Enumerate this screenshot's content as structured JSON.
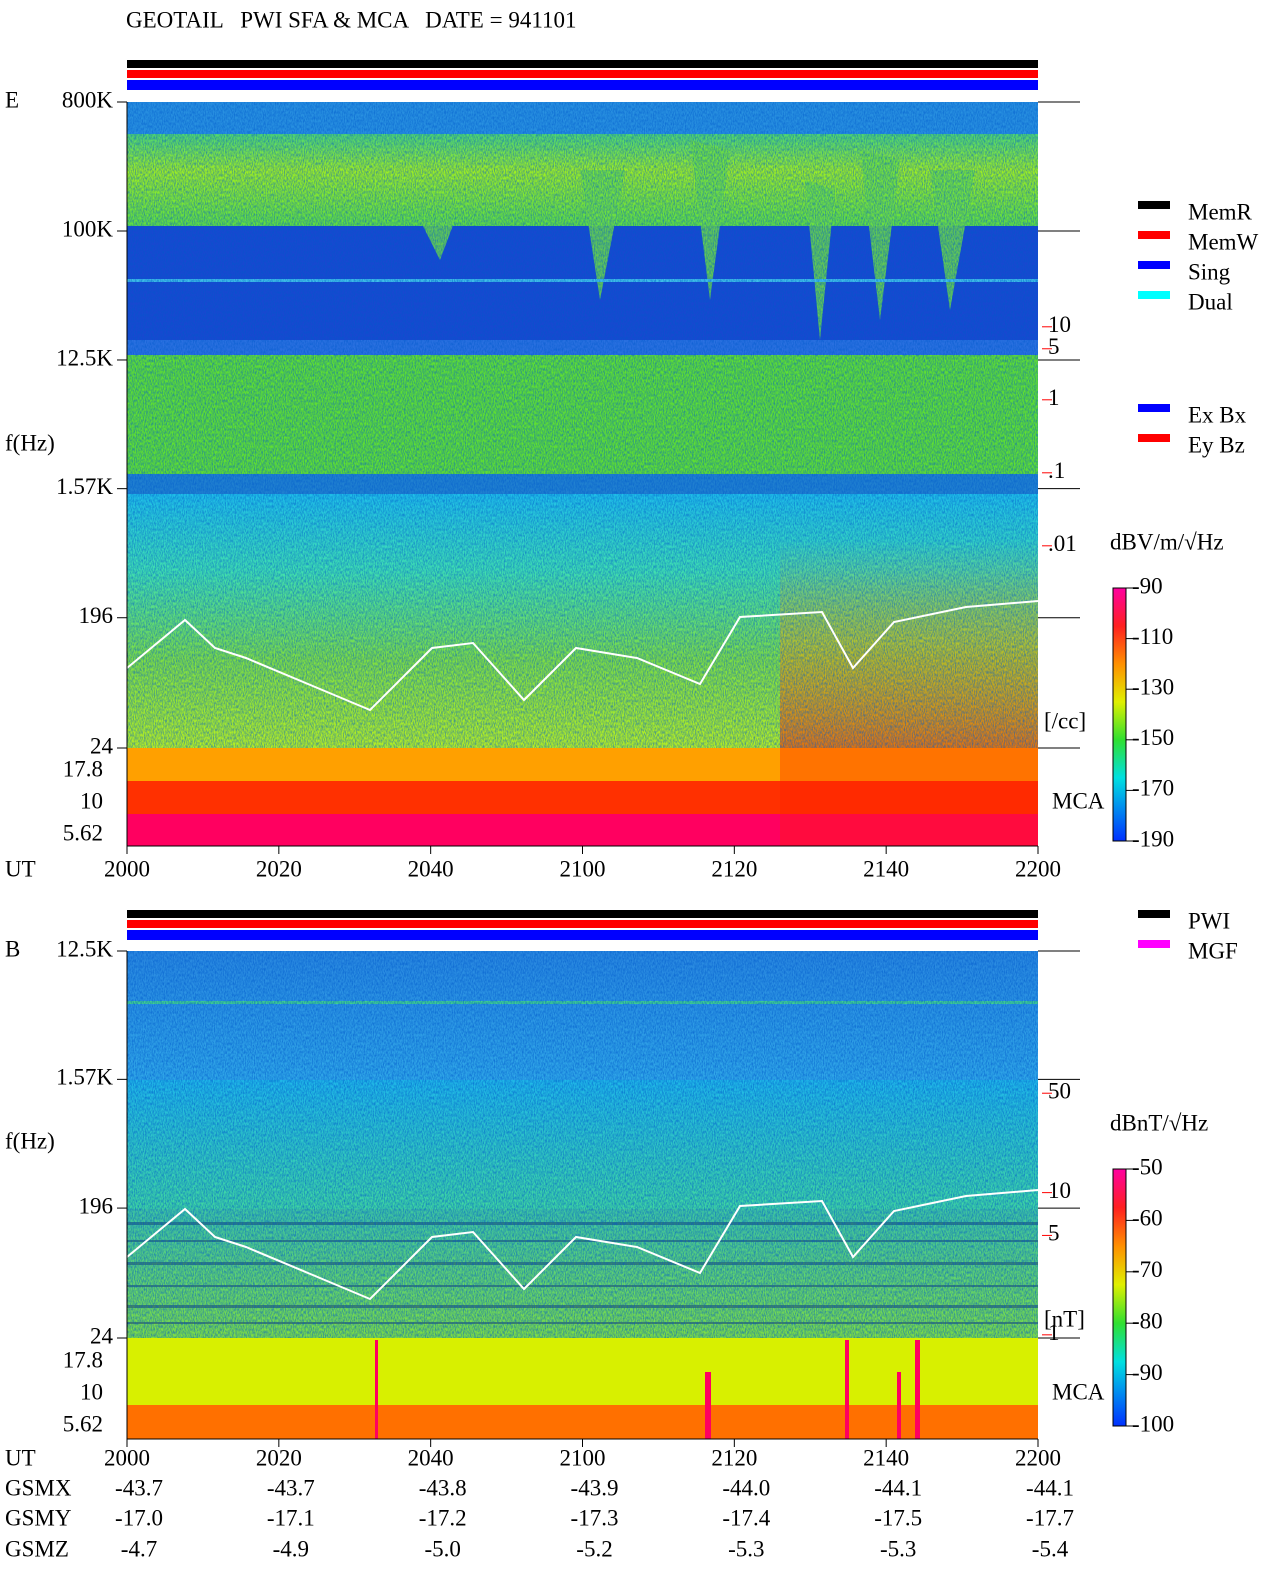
{
  "title": "GEOTAIL   PWI SFA & MCA   DATE = 941101",
  "chart_data": [
    {
      "type": "spectrogram",
      "panel_label": "E",
      "ylabel": "f(Hz)",
      "xlabel": "UT",
      "yscale": "log",
      "ylim": [
        24,
        800000
      ],
      "yticks": [
        {
          "value": 800000,
          "label": "800K"
        },
        {
          "value": 100000,
          "label": "100K"
        },
        {
          "value": 12500,
          "label": "12.5K"
        },
        {
          "value": 1570,
          "label": "1.57K"
        },
        196,
        24
      ],
      "mca_label": "MCA",
      "mca_ticks": [
        "17.8",
        "10",
        "5.62"
      ],
      "xticks": [
        "2000",
        "2020",
        "2040",
        "2100",
        "2120",
        "2140",
        "2200"
      ],
      "y2scale": "log",
      "y2lim": [
        1.7e-05,
        12000
      ],
      "y2ticks": [
        10,
        5,
        1,
        {
          "value": 0.1,
          "label": ".1"
        },
        {
          "value": 0.01,
          "label": ".01"
        }
      ],
      "y2label": "[/cc]",
      "y2color": "#ff0000",
      "colorbar": {
        "label": "dBV/m/√Hz",
        "lim": [
          -190,
          -90
        ],
        "ticks": [
          -90,
          -110,
          -130,
          -150,
          -170,
          -190
        ]
      },
      "status_bars": [
        "#000000",
        "#ff0000",
        "#0000ff"
      ],
      "legends": [
        [
          {
            "name": "MemR",
            "color": "#000000"
          },
          {
            "name": "MemW",
            "color": "#ff0000"
          },
          {
            "name": "Sing",
            "color": "#0000ff"
          },
          {
            "name": "Dual",
            "color": "#00ffff"
          }
        ],
        [
          {
            "name": "Ex Bx",
            "color": "#0000ff"
          },
          {
            "name": "Ey Bz",
            "color": "#ff0000"
          }
        ]
      ]
    },
    {
      "type": "spectrogram",
      "panel_label": "B",
      "ylabel": "f(Hz)",
      "xlabel": "UT",
      "yscale": "log",
      "ylim": [
        24,
        12500
      ],
      "yticks": [
        {
          "value": 12500,
          "label": "12.5K"
        },
        {
          "value": 1570,
          "label": "1.57K"
        },
        196,
        24
      ],
      "mca_label": "MCA",
      "mca_ticks": [
        "17.8",
        "10",
        "5.62"
      ],
      "xticks": [
        "2000",
        "2020",
        "2040",
        "2100",
        "2120",
        "2140",
        "2200"
      ],
      "y2scale": "log",
      "y2lim": [
        0.95,
        500
      ],
      "y2ticks": [
        50,
        10,
        5,
        1
      ],
      "y2label": "[nT]",
      "y2color": "#ff0000",
      "colorbar": {
        "label": "dBnT/√Hz",
        "lim": [
          -100,
          -50
        ],
        "ticks": [
          -50,
          -60,
          -70,
          -80,
          -90,
          -100
        ]
      },
      "status_bars": [
        "#000000",
        "#ff0000",
        "#0000ff"
      ],
      "legends": [
        [
          {
            "name": "PWI",
            "color": "#000000"
          },
          {
            "name": "MGF",
            "color": "#ff00ff"
          }
        ]
      ]
    }
  ],
  "orbit": {
    "rows": [
      {
        "label": "GSMX",
        "values": [
          "-43.7",
          "-43.7",
          "-43.8",
          "-43.9",
          "-44.0",
          "-44.1",
          "-44.1"
        ]
      },
      {
        "label": "GSMY",
        "values": [
          "-17.0",
          "-17.1",
          "-17.2",
          "-17.3",
          "-17.4",
          "-17.5",
          "-17.7"
        ]
      },
      {
        "label": "GSMZ",
        "values": [
          "-4.7",
          "-4.9",
          "-5.0",
          "-5.2",
          "-5.3",
          "-5.3",
          "-5.4"
        ]
      }
    ]
  }
}
